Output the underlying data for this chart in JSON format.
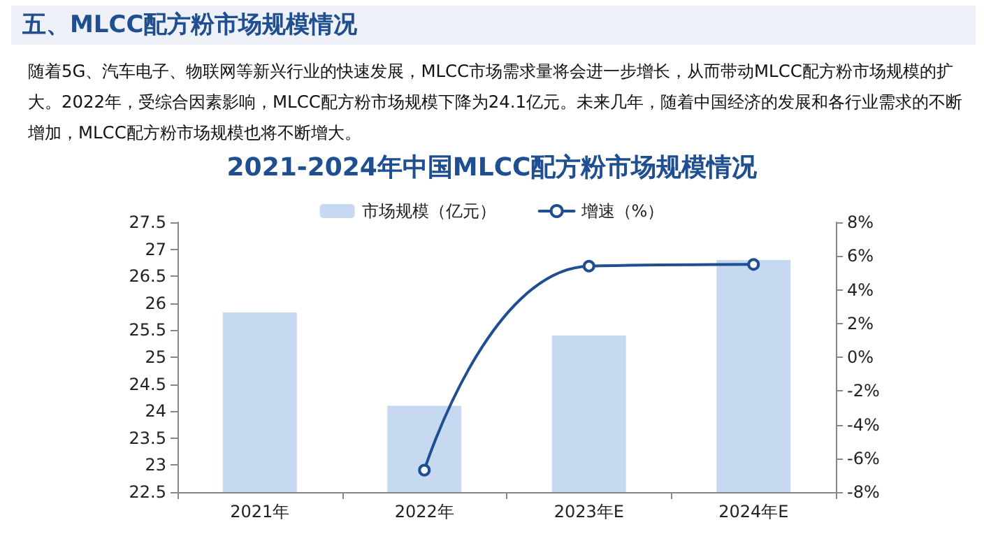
{
  "chart_data": {
    "type": "bar",
    "title": "2021-2024年中国MLCC配方粉市场规模情况",
    "annotations": [
      "五、MLCC配方粉市场规模情况",
      "随着5G、汽车电子、物联网等新兴行业的快速发展，MLCC市场需求量将会进一步增长，从而带动MLCC配方粉市场规模的扩大。2022年，受综合因素影响，MLCC配方粉市场规模下降为24.1亿元。未来几年，随着中国经济的发展和各行业需求的不断增加，MLCC配方粉市场规模也将不断增大。"
    ],
    "categories": [
      "2021年",
      "2022年",
      "2023年E",
      "2024年E"
    ],
    "series": [
      {
        "name": "市场规模（亿元）",
        "color": "#c6d9f1",
        "values": [
          25.83,
          24.1,
          25.4,
          26.8
        ]
      },
      {
        "name": "增速（%）",
        "type": "line",
        "axis": "y2",
        "color": "#1f4e91",
        "values": [
          null,
          -6.7,
          5.4,
          5.5
        ]
      }
    ],
    "ylim": [
      22.5,
      27.5
    ],
    "yticks": [
      22.5,
      23,
      23.5,
      24,
      24.5,
      25,
      25.5,
      26,
      26.5,
      27,
      27.5
    ],
    "y2lim": [
      -8,
      8
    ],
    "y2ticks": [
      {
        "value": -8,
        "label": "-8%"
      },
      {
        "value": -6,
        "label": "-6%"
      },
      {
        "value": -4,
        "label": "-4%"
      },
      {
        "value": -2,
        "label": "-2%"
      },
      {
        "value": 0,
        "label": "0%"
      },
      {
        "value": 2,
        "label": "2%"
      },
      {
        "value": 4,
        "label": "4%"
      },
      {
        "value": 6,
        "label": "6%"
      },
      {
        "value": 8,
        "label": "8%"
      }
    ],
    "legend": "top",
    "marker": "circle",
    "line_style": "solid",
    "grid": false
  }
}
